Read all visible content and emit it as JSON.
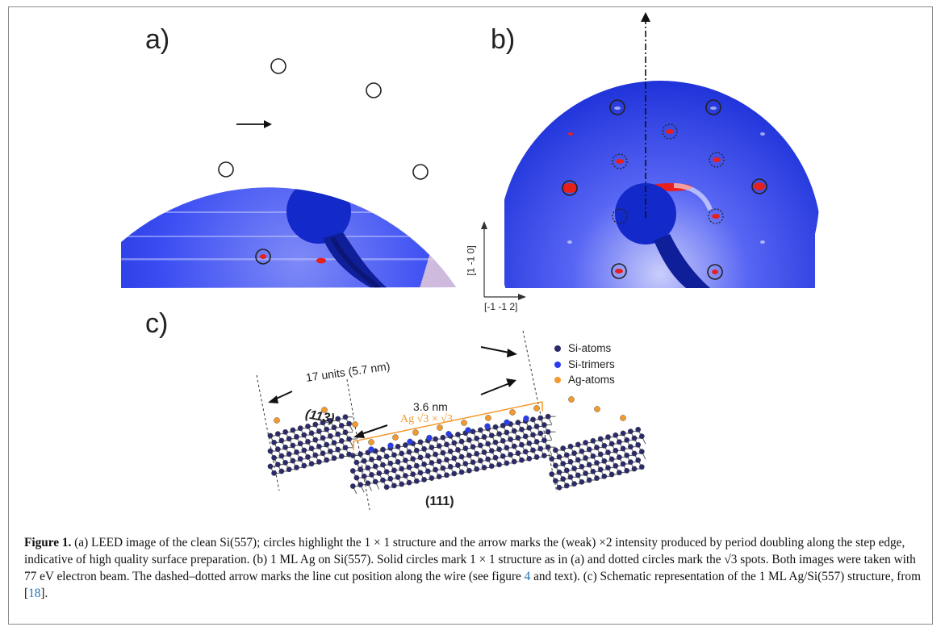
{
  "panels": {
    "a_label": "a)",
    "b_label": "b)",
    "c_label": "c)"
  },
  "axes": {
    "vertical": "[1 -1 0]",
    "horizontal": "[-1 -1 2]"
  },
  "schematic": {
    "legend": [
      {
        "label": "Si-atoms",
        "color": "#2b2b6b"
      },
      {
        "label": "Si-trimers",
        "color": "#2a3cf0"
      },
      {
        "label": "Ag-atoms",
        "color": "#f29a2e"
      }
    ],
    "units_label": "17 units (5.7 nm)",
    "terrace_width": "3.6 nm",
    "ag_label": "Ag √3 × √3",
    "facet_113": "(113)",
    "facet_111": "(111)"
  },
  "caption": {
    "figure_label": "Figure 1.",
    "seg1": " (a) LEED image of the clean Si(557); circles highlight the 1 × 1 structure and the arrow marks the (weak) ×2 intensity produced by period doubling along the step edge, indicative of high quality surface preparation. (b) 1 ML Ag on Si(557). Solid circles mark 1 × 1 structure as in (a) and dotted circles mark the √3 spots. Both images were taken with 77 eV electron beam. The dashed–dotted arrow marks the line cut position along the wire (see figure ",
    "ref_fig": "4",
    "seg2": " and text). (c) Schematic representation of the 1 ML Ag/Si(557) structure, from [",
    "ref_cite": "18",
    "seg3": "]."
  },
  "colors": {
    "leed_blue": "#2d3ff0",
    "spot_red": "#e8201c",
    "ag_orange": "#f29a2e"
  }
}
